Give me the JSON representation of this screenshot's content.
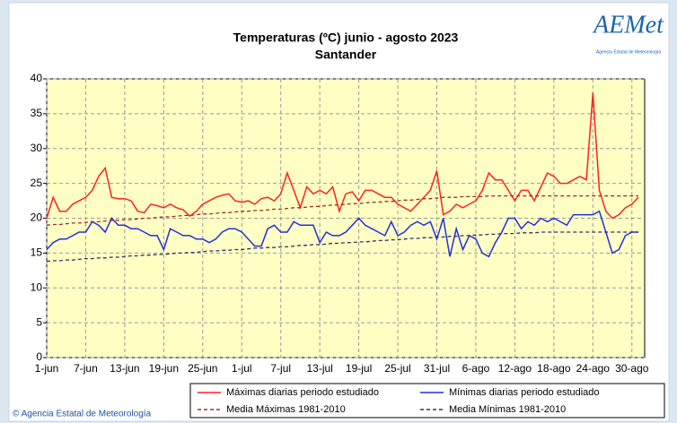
{
  "chart_data": {
    "type": "line",
    "title": "Temperaturas (ºC) junio - agosto 2023",
    "subtitle": "Santander",
    "logo": {
      "name": "AEMet",
      "caption": "Agencia Estatal de Meteorología"
    },
    "credit": "© Agencia Estatal de Meteorología",
    "categories": [
      "1-jun",
      null,
      null,
      null,
      null,
      null,
      "7-jun",
      null,
      null,
      null,
      null,
      null,
      "13-jun",
      null,
      null,
      null,
      null,
      null,
      "19-jun",
      null,
      null,
      null,
      null,
      null,
      "25-jun",
      null,
      null,
      null,
      null,
      null,
      "1-jul",
      null,
      null,
      null,
      null,
      null,
      "7-jul",
      null,
      null,
      null,
      null,
      null,
      "13-jul",
      null,
      null,
      null,
      null,
      null,
      "19-jul",
      null,
      null,
      null,
      null,
      null,
      "25-jul",
      null,
      null,
      null,
      null,
      null,
      "31-jul",
      null,
      null,
      null,
      null,
      null,
      "6-ago",
      null,
      null,
      null,
      null,
      null,
      "12-ago",
      null,
      null,
      null,
      null,
      null,
      "18-ago",
      null,
      null,
      null,
      null,
      null,
      "24-ago",
      null,
      null,
      null,
      null,
      null,
      "30-ago",
      null
    ],
    "series": [
      {
        "name": "Máximas diarias periodo estudiado",
        "color": "#ff2020",
        "style": "solid",
        "values": [
          20,
          23,
          21,
          21,
          22,
          22.5,
          23,
          24,
          26,
          27.2,
          23,
          22.8,
          22.8,
          22.5,
          21,
          20.8,
          22,
          21.8,
          21.5,
          22,
          21.5,
          21.2,
          20.3,
          21,
          22,
          22.5,
          23,
          23.3,
          23.5,
          22.5,
          22.3,
          22.5,
          22,
          22.8,
          23,
          22.5,
          23.5,
          26.5,
          24,
          21.5,
          24.5,
          23.5,
          24,
          23.5,
          24.5,
          21,
          23.5,
          23.8,
          22.5,
          24,
          24,
          23.5,
          23,
          23,
          22,
          21.5,
          21,
          22,
          23,
          24,
          26.8,
          20.5,
          21,
          22,
          21.5,
          22,
          22.5,
          24,
          26.5,
          25.5,
          25.5,
          24,
          22.5,
          24,
          24,
          22.5,
          24.5,
          26.5,
          26,
          25,
          25,
          25.5,
          26,
          25.5,
          38,
          24,
          21,
          20,
          20.5,
          21.5,
          22,
          23
        ]
      },
      {
        "name": "Mínimas diarias periodo estudiado",
        "color": "#2030e0",
        "style": "solid",
        "values": [
          15.5,
          16.5,
          17,
          17,
          17.5,
          18,
          18,
          19.5,
          19,
          18,
          20,
          19,
          19,
          18.5,
          18.5,
          18,
          17.5,
          17.5,
          15.5,
          18.5,
          18,
          17.5,
          17.5,
          17,
          17,
          16.5,
          17,
          18,
          18.5,
          18.5,
          18,
          17,
          16,
          16,
          18.5,
          19,
          18,
          18,
          19.5,
          19,
          19,
          19,
          16.5,
          18,
          17.5,
          17.5,
          18,
          19,
          20,
          19,
          18.5,
          18,
          17.5,
          19.5,
          17.5,
          18,
          19,
          19.5,
          19,
          19.5,
          17,
          20,
          14.5,
          18.5,
          15.5,
          17.5,
          17,
          15,
          14.5,
          16.5,
          18,
          20,
          20,
          18.5,
          19.5,
          19,
          20,
          19.5,
          20,
          19.5,
          19,
          20.5,
          20.5,
          20.5,
          20.5,
          21,
          18,
          15,
          15.5,
          17.5,
          18,
          18
        ]
      },
      {
        "name": "Media Máximas 1981-2010",
        "color": "#9a3020",
        "style": "dashed",
        "values": [
          19.0,
          19.1,
          19.1,
          19.2,
          19.3,
          19.3,
          19.4,
          19.5,
          19.5,
          19.6,
          19.7,
          19.7,
          19.8,
          19.8,
          19.9,
          20.0,
          20.0,
          20.1,
          20.2,
          20.2,
          20.3,
          20.4,
          20.4,
          20.5,
          20.6,
          20.6,
          20.7,
          20.8,
          20.8,
          20.9,
          21.0,
          21.0,
          21.1,
          21.1,
          21.2,
          21.3,
          21.3,
          21.4,
          21.5,
          21.5,
          21.6,
          21.7,
          21.7,
          21.8,
          21.9,
          21.9,
          22.0,
          22.1,
          22.1,
          22.2,
          22.3,
          22.3,
          22.4,
          22.4,
          22.5,
          22.6,
          22.6,
          22.7,
          22.8,
          22.8,
          22.9,
          23.0,
          23.0,
          23.0,
          23.1,
          23.1,
          23.1,
          23.1,
          23.2,
          23.2,
          23.2,
          23.2,
          23.2,
          23.2,
          23.2,
          23.2,
          23.2,
          23.2,
          23.2,
          23.2,
          23.2,
          23.2,
          23.2,
          23.2,
          23.2,
          23.2,
          23.2,
          23.2,
          23.2,
          23.2,
          23.2,
          23.2
        ]
      },
      {
        "name": "Media Mínimas 1981-2010",
        "color": "#303070",
        "style": "dashed",
        "values": [
          13.8,
          13.9,
          13.9,
          14.0,
          14.0,
          14.1,
          14.2,
          14.2,
          14.3,
          14.3,
          14.4,
          14.4,
          14.5,
          14.6,
          14.6,
          14.7,
          14.7,
          14.8,
          14.8,
          14.9,
          15.0,
          15.0,
          15.1,
          15.1,
          15.2,
          15.3,
          15.3,
          15.4,
          15.4,
          15.5,
          15.5,
          15.6,
          15.7,
          15.7,
          15.8,
          15.8,
          15.9,
          15.9,
          16.0,
          16.1,
          16.1,
          16.2,
          16.2,
          16.3,
          16.4,
          16.4,
          16.5,
          16.5,
          16.6,
          16.6,
          16.7,
          16.8,
          16.8,
          16.9,
          16.9,
          17.0,
          17.1,
          17.1,
          17.2,
          17.2,
          17.3,
          17.3,
          17.4,
          17.4,
          17.5,
          17.5,
          17.6,
          17.6,
          17.7,
          17.7,
          17.8,
          17.8,
          17.8,
          17.9,
          17.9,
          17.9,
          18.0,
          18.0,
          18.0,
          18.0,
          18.0,
          18.0,
          18.0,
          18.0,
          18.0,
          18.0,
          18.0,
          18.0,
          18.0,
          18.0,
          18.0,
          18.0
        ]
      }
    ],
    "ylim": [
      0,
      40
    ],
    "yticks": [
      0,
      5,
      10,
      15,
      20,
      25,
      30,
      35,
      40
    ],
    "grid": true,
    "legend_position": "bottom",
    "plot_background": "#ffffc4"
  }
}
